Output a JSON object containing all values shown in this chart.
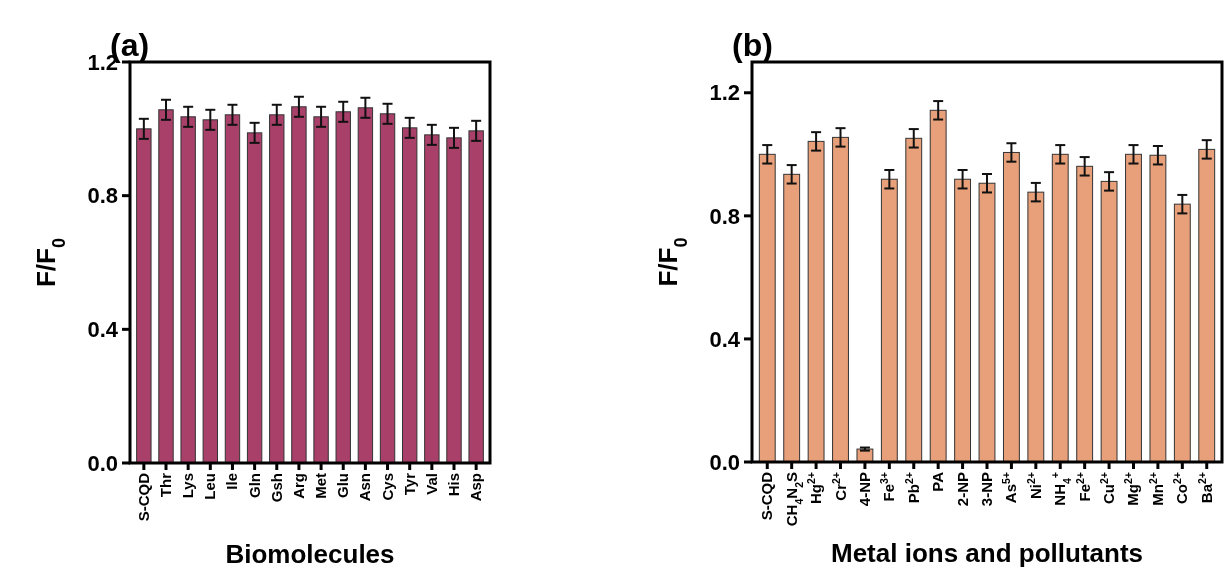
{
  "chart_data": [
    {
      "type": "bar",
      "title": "(a)",
      "xlabel": "Biomolecules",
      "ylabel": "F/F$_{0}$",
      "categories": [
        "S-CQD",
        "Thr",
        "Lys",
        "Leu",
        "Ile",
        "Gln",
        "Gsh",
        "Arg",
        "Met",
        "Glu",
        "Asn",
        "Cys",
        "Tyr",
        "Val",
        "His",
        "Asp"
      ],
      "series": [
        {
          "color": "#a8406a",
          "values": [
            1.0,
            1.057,
            1.036,
            1.027,
            1.042,
            0.988,
            1.042,
            1.066,
            1.036,
            1.051,
            1.063,
            1.045,
            1.003,
            0.982,
            0.973,
            0.994
          ],
          "errors": [
            0.03,
            0.03,
            0.03,
            0.03,
            0.03,
            0.03,
            0.03,
            0.03,
            0.03,
            0.03,
            0.03,
            0.03,
            0.03,
            0.03,
            0.03,
            0.03
          ]
        }
      ],
      "ylim": [
        0,
        1.2
      ],
      "yticks": [
        {
          "value": 0,
          "label": "0.0"
        },
        0.4,
        0.8,
        1.2
      ],
      "grid": false
    },
    {
      "type": "bar",
      "title": "(b)",
      "xlabel": "Metal ions and pollutants",
      "ylabel": "F/F$_{0}$",
      "categories": [
        "S-CQD",
        "CH$_{4}$N$_{2}$S",
        "Hg$^{2+}$",
        "Cr$^{2+}$",
        "4-NP",
        "Fe$^{3+}$",
        "Pb$^{2+}$",
        "PA",
        "2-NP",
        "3-NP",
        "As$^{5+}$",
        "Ni$^{2+}$",
        "NH$_{4}$$^{+}$",
        "Fe$^{2+}$",
        "Cu$^{2+}$",
        "Mg$^{2+}$",
        "Mn$^{2+}$",
        "Co$^{2+}$",
        "Ba$^{2+}$"
      ],
      "series": [
        {
          "color": "#e8a07a",
          "values": [
            1.0,
            0.935,
            1.042,
            1.055,
            0.042,
            0.919,
            1.052,
            1.143,
            0.919,
            0.906,
            1.006,
            0.877,
            1.0,
            0.961,
            0.912,
            1.0,
            0.997,
            0.838,
            1.016
          ],
          "errors": [
            0.03,
            0.03,
            0.03,
            0.03,
            0.005,
            0.03,
            0.03,
            0.03,
            0.03,
            0.03,
            0.03,
            0.03,
            0.03,
            0.03,
            0.03,
            0.03,
            0.03,
            0.03,
            0.03
          ]
        }
      ],
      "ylim": [
        0,
        1.3
      ],
      "yticks": [
        {
          "value": 0,
          "label": "0.0"
        },
        0.4,
        0.8,
        1.2
      ],
      "grid": false
    }
  ]
}
